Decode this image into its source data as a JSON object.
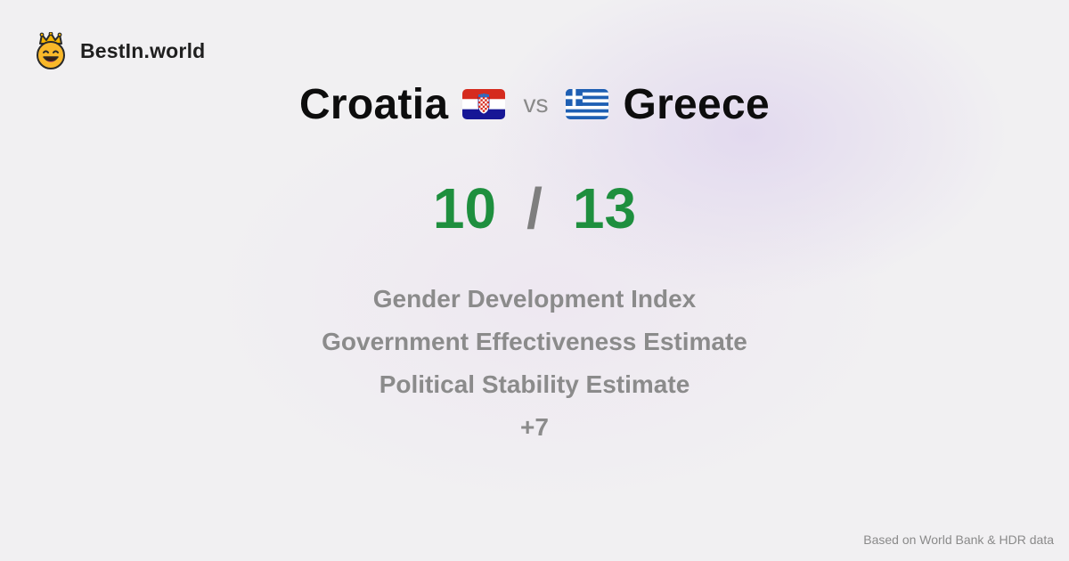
{
  "brand": {
    "name": "BestIn.world",
    "logo_icon": "crowned-smiley-icon"
  },
  "comparison": {
    "left_country": "Croatia",
    "left_flag_icon": "croatia-flag-icon",
    "vs_label": "vs",
    "right_country": "Greece",
    "right_flag_icon": "greece-flag-icon"
  },
  "score": {
    "left": "10",
    "separator": "/",
    "right": "13",
    "color": "#1e8f3e"
  },
  "metrics": [
    "Gender Development Index",
    "Government Effectiveness Estimate",
    "Political Stability Estimate",
    "+7"
  ],
  "footer": {
    "source_note": "Based on World Bank & HDR data"
  }
}
